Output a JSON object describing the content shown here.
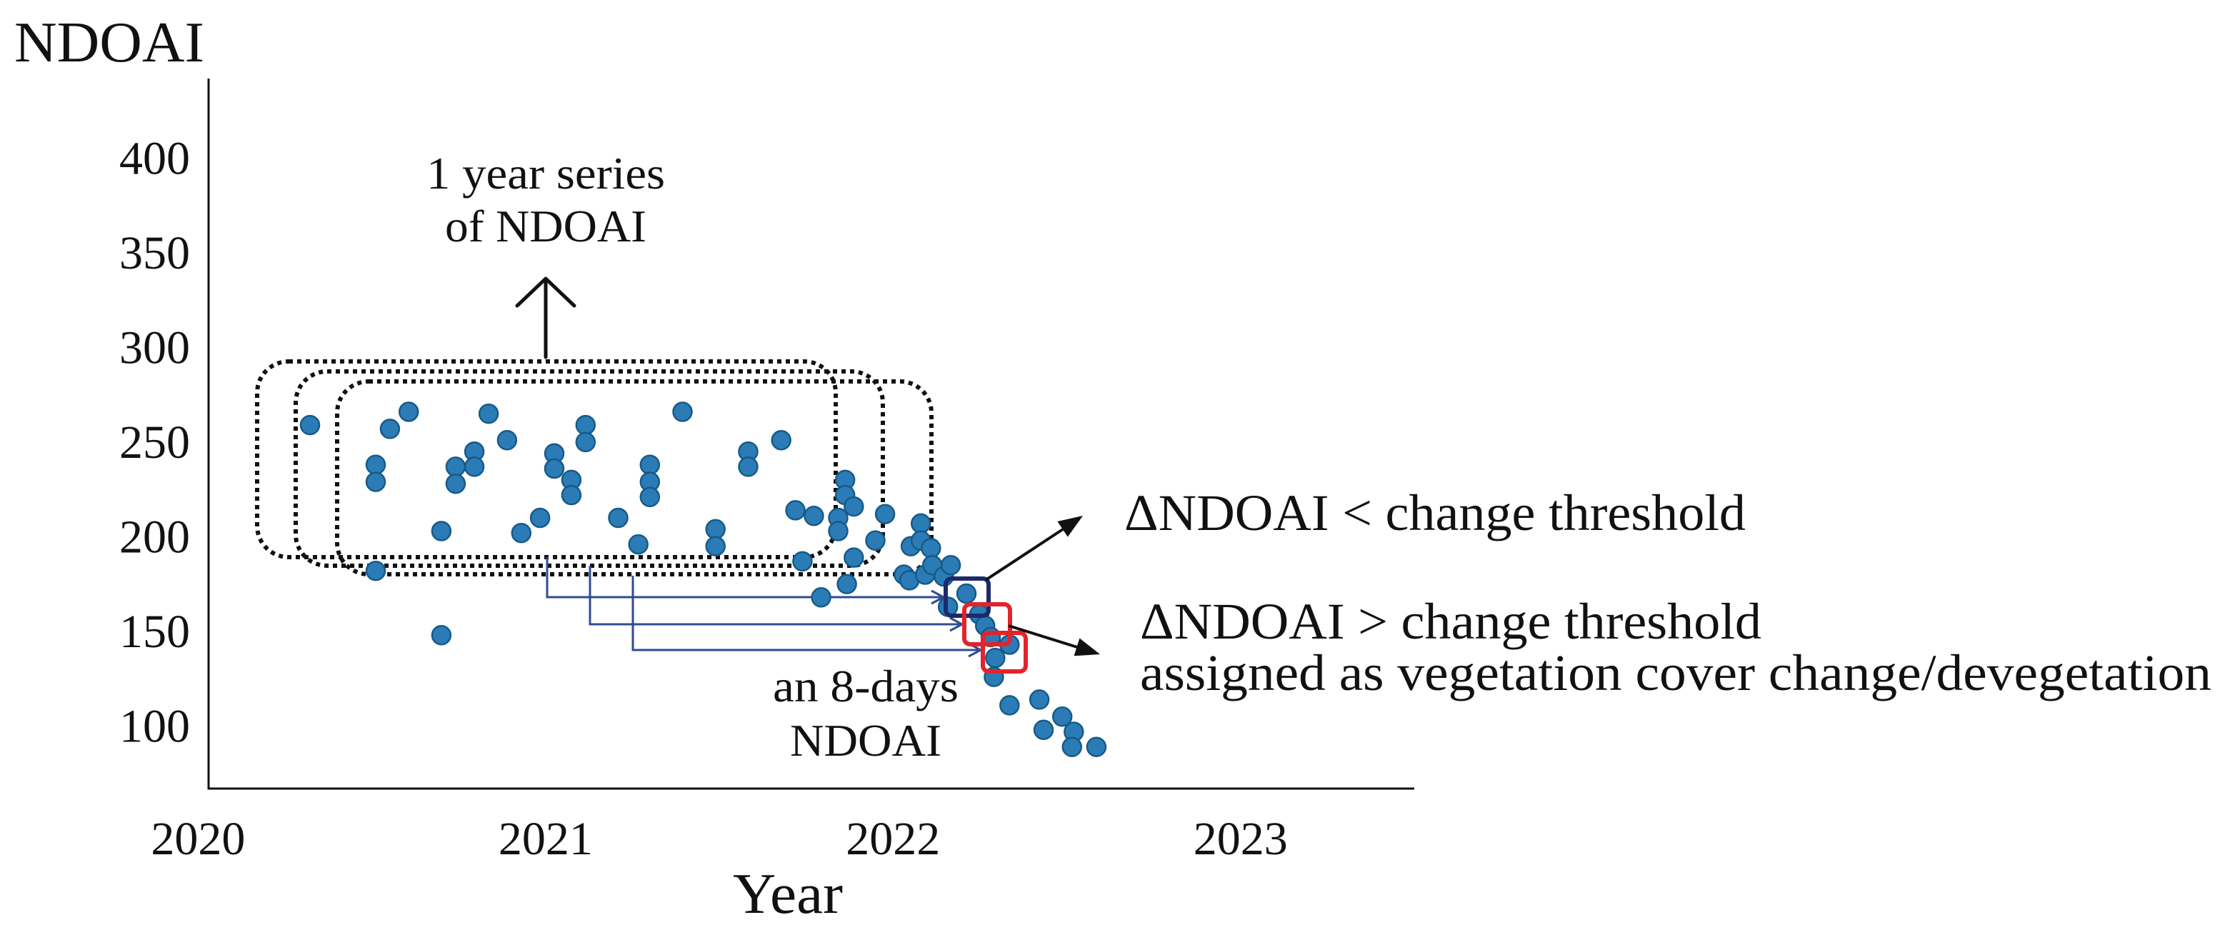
{
  "chart_data": {
    "type": "scatter",
    "xlabel": "Year",
    "ylabel": "NDOAI",
    "xticks": [
      2020,
      2021,
      2022,
      2023
    ],
    "yticks": [
      100,
      150,
      200,
      250,
      300,
      350,
      400
    ],
    "xlim": [
      2020.03,
      2023.5
    ],
    "ylim": [
      67,
      442
    ],
    "grid": false,
    "points": [
      [
        2020.322,
        259
      ],
      [
        2020.511,
        182
      ],
      [
        2020.511,
        238
      ],
      [
        2020.511,
        229
      ],
      [
        2020.552,
        257
      ],
      [
        2020.606,
        266
      ],
      [
        2020.7,
        203
      ],
      [
        2020.7,
        148
      ],
      [
        2020.741,
        237
      ],
      [
        2020.741,
        228
      ],
      [
        2020.795,
        245
      ],
      [
        2020.795,
        237
      ],
      [
        2020.836,
        265
      ],
      [
        2020.889,
        251
      ],
      [
        2020.93,
        202
      ],
      [
        2020.984,
        210
      ],
      [
        2021.025,
        244
      ],
      [
        2021.025,
        236
      ],
      [
        2021.074,
        230
      ],
      [
        2021.074,
        222
      ],
      [
        2021.115,
        259
      ],
      [
        2021.115,
        250
      ],
      [
        2021.209,
        210
      ],
      [
        2021.267,
        196
      ],
      [
        2021.3,
        238
      ],
      [
        2021.3,
        229
      ],
      [
        2021.3,
        221
      ],
      [
        2021.394,
        266
      ],
      [
        2021.489,
        204
      ],
      [
        2021.489,
        195
      ],
      [
        2021.583,
        245
      ],
      [
        2021.583,
        237
      ],
      [
        2021.678,
        251
      ],
      [
        2021.719,
        214
      ],
      [
        2021.739,
        187
      ],
      [
        2021.772,
        211
      ],
      [
        2021.793,
        168
      ],
      [
        2021.842,
        210
      ],
      [
        2021.842,
        203
      ],
      [
        2021.862,
        230
      ],
      [
        2021.862,
        222
      ],
      [
        2021.887,
        216
      ],
      [
        2021.887,
        189
      ],
      [
        2021.867,
        175
      ],
      [
        2021.949,
        198
      ],
      [
        2021.977,
        212
      ],
      [
        2022.031,
        180
      ],
      [
        2022.047,
        177
      ],
      [
        2022.051,
        195
      ],
      [
        2022.08,
        207
      ],
      [
        2022.08,
        198
      ],
      [
        2022.092,
        180
      ],
      [
        2022.109,
        194
      ],
      [
        2022.113,
        185
      ],
      [
        2022.146,
        179
      ],
      [
        2022.166,
        185
      ],
      [
        2022.211,
        170
      ],
      [
        2022.158,
        163
      ],
      [
        2022.248,
        159
      ],
      [
        2022.265,
        153
      ],
      [
        2022.281,
        147
      ],
      [
        2022.335,
        143
      ],
      [
        2022.294,
        136
      ],
      [
        2022.29,
        126
      ],
      [
        2022.335,
        111
      ],
      [
        2022.421,
        114
      ],
      [
        2022.433,
        98
      ],
      [
        2022.487,
        105
      ],
      [
        2022.52,
        97
      ],
      [
        2022.515,
        89
      ],
      [
        2022.585,
        89
      ]
    ],
    "annotations": {
      "window_label": [
        "1 year series",
        "of NDOAI"
      ],
      "point_label": [
        "an 8-days",
        "NDOAI"
      ],
      "below_threshold": "ΔNDOAI < change threshold",
      "above_threshold": "ΔNDOAI > change threshold",
      "above_threshold_note": "assigned as vegetation cover change/devegetation"
    }
  },
  "colors": {
    "point_fill": "#2b7cb6",
    "point_edge": "#175a88",
    "unchanged_box": "#1c2a6c",
    "changed_box": "#e3232b",
    "connector": "#2f4d93"
  }
}
